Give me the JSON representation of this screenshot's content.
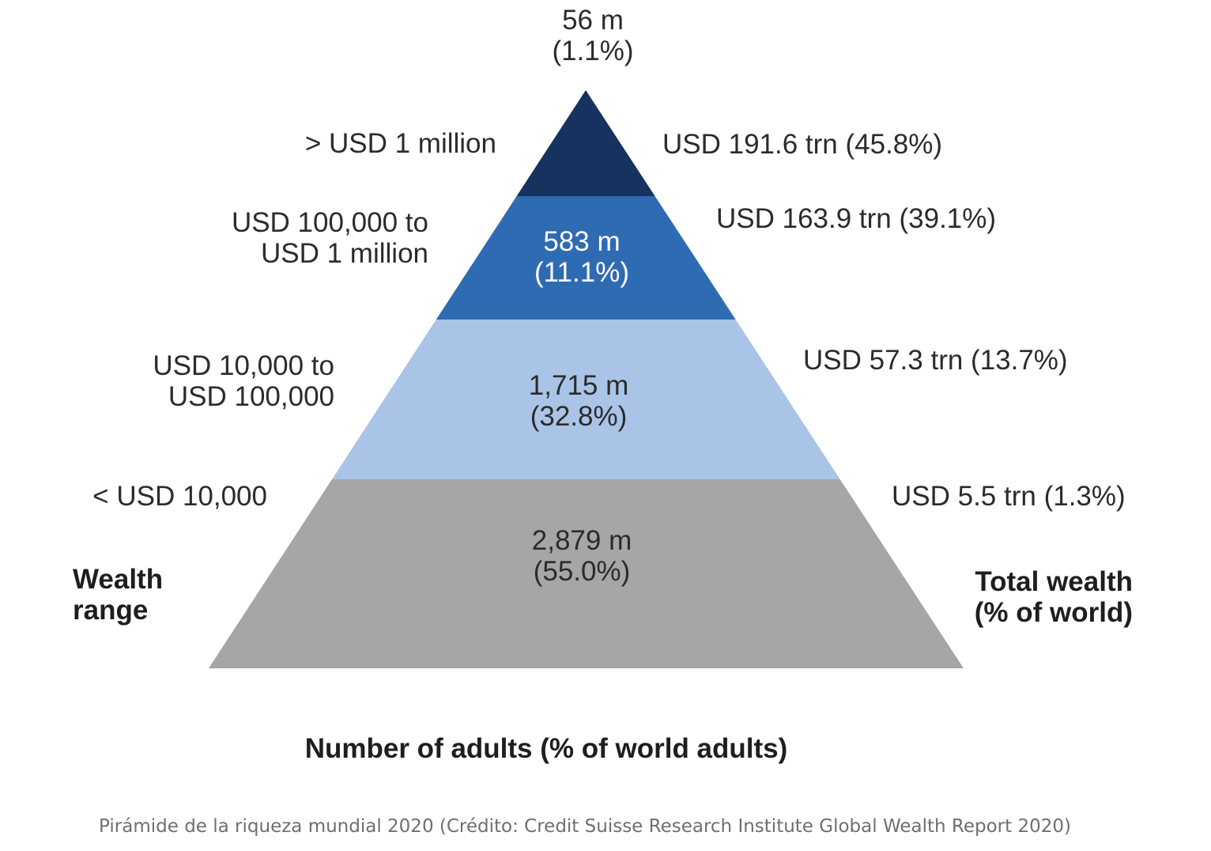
{
  "chart_data": {
    "type": "pyramid",
    "tiers": [
      {
        "wealth_range": [
          "> USD 1 million"
        ],
        "adults": "56 m",
        "adults_pct": "(1.1%)",
        "adults_value": 56,
        "adults_share": 1.1,
        "total_wealth": "USD 191.6 trn (45.8%)",
        "total_wealth_value": 191.6,
        "total_wealth_share": 45.8,
        "color": "#16325f"
      },
      {
        "wealth_range": [
          "USD 100,000 to",
          "USD 1 million"
        ],
        "adults": "583 m",
        "adults_pct": "(11.1%)",
        "adults_value": 583,
        "adults_share": 11.1,
        "total_wealth": "USD 163.9 trn (39.1%)",
        "total_wealth_value": 163.9,
        "total_wealth_share": 39.1,
        "color": "#2f6bb3"
      },
      {
        "wealth_range": [
          "USD 10,000 to",
          "USD 100,000"
        ],
        "adults": "1,715 m",
        "adults_pct": "(32.8%)",
        "adults_value": 1715,
        "adults_share": 32.8,
        "total_wealth": "USD 57.3 trn (13.7%)",
        "total_wealth_value": 57.3,
        "total_wealth_share": 13.7,
        "color": "#a9c4e6"
      },
      {
        "wealth_range": [
          "< USD 10,000"
        ],
        "adults": "2,879 m",
        "adults_pct": "(55.0%)",
        "adults_value": 2879,
        "adults_share": 55.0,
        "total_wealth": "USD 5.5 trn (1.3%)",
        "total_wealth_value": 5.5,
        "total_wealth_share": 1.3,
        "color": "#a4a6a7"
      }
    ],
    "left_axis_title": [
      "Wealth",
      "range"
    ],
    "right_axis_title": [
      "Total wealth",
      "(% of world)"
    ],
    "bottom_title": "Number of adults (% of world adults)"
  },
  "caption": "Pirámide de la riqueza mundial 2020 (Crédito: Credit Suisse Research Institute Global Wealth Report 2020)"
}
